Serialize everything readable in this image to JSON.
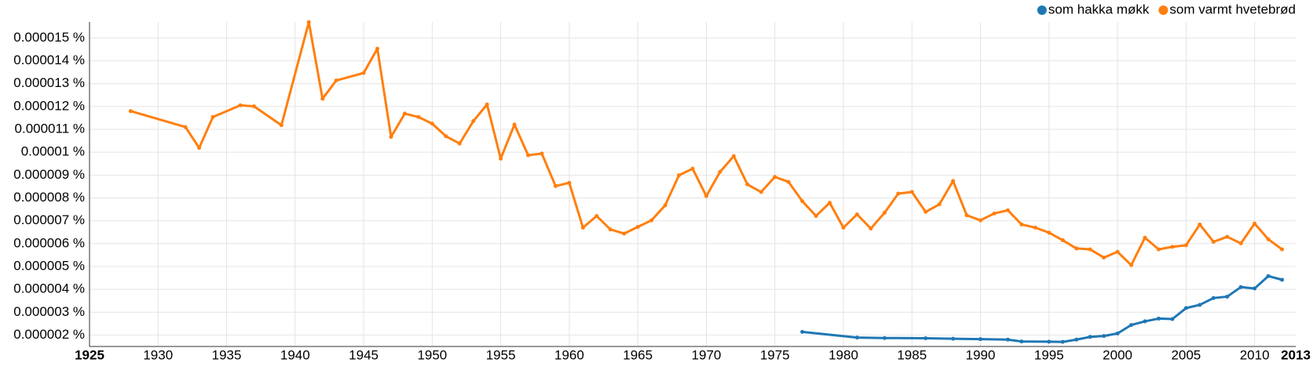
{
  "chart_data": {
    "type": "line",
    "series": [
      {
        "name": "som hakka møkk",
        "color": "#1f77b4",
        "x": [
          1977,
          1981,
          1983,
          1986,
          1988,
          1990,
          1992,
          1993,
          1995,
          1996,
          1997,
          1998,
          1999,
          2000,
          2001,
          2002,
          2003,
          2004,
          2005,
          2006,
          2007,
          2008,
          2009,
          2010,
          2011,
          2012
        ],
        "values": [
          2.14e-06,
          1.89e-06,
          1.87e-06,
          1.86e-06,
          1.84e-06,
          1.82e-06,
          1.8e-06,
          1.72e-06,
          1.71e-06,
          1.7e-06,
          1.8e-06,
          1.92e-06,
          1.96e-06,
          2.07e-06,
          2.44e-06,
          2.6e-06,
          2.72e-06,
          2.7e-06,
          3.18e-06,
          3.32e-06,
          3.62e-06,
          3.68e-06,
          4.1e-06,
          4.04e-06,
          4.58e-06,
          4.42e-06
        ]
      },
      {
        "name": "som varmt hvetebrød",
        "color": "#ff7f0e",
        "x": [
          1928,
          1932,
          1933,
          1934,
          1936,
          1937,
          1939,
          1941,
          1942,
          1943,
          1945,
          1946,
          1947,
          1948,
          1949,
          1950,
          1951,
          1952,
          1953,
          1954,
          1955,
          1956,
          1957,
          1958,
          1959,
          1960,
          1961,
          1962,
          1963,
          1964,
          1965,
          1966,
          1967,
          1968,
          1969,
          1970,
          1971,
          1972,
          1973,
          1974,
          1975,
          1976,
          1977,
          1978,
          1979,
          1980,
          1981,
          1982,
          1983,
          1984,
          1985,
          1986,
          1987,
          1988,
          1989,
          1990,
          1991,
          1992,
          1993,
          1994,
          1995,
          1996,
          1997,
          1998,
          1999,
          2000,
          2001,
          2002,
          2003,
          2004,
          2005,
          2006,
          2007,
          2008,
          2009,
          2010,
          2011,
          2012
        ],
        "values": [
          1.18e-05,
          1.11e-05,
          1.019e-05,
          1.154e-05,
          1.205e-05,
          1.201e-05,
          1.118e-05,
          1.569e-05,
          1.234e-05,
          1.314e-05,
          1.347e-05,
          1.453e-05,
          1.067e-05,
          1.169e-05,
          1.154e-05,
          1.125e-05,
          1.07e-05,
          1.038e-05,
          1.136e-05,
          1.209e-05,
          9.72e-06,
          1.121e-05,
          9.87e-06,
          9.94e-06,
          8.52e-06,
          8.66e-06,
          6.7e-06,
          7.21e-06,
          6.62e-06,
          6.44e-06,
          6.73e-06,
          7.02e-06,
          7.68e-06,
          8.99e-06,
          9.28e-06,
          8.08e-06,
          9.14e-06,
          9.83e-06,
          8.59e-06,
          8.26e-06,
          8.92e-06,
          8.7e-06,
          7.86e-06,
          7.21e-06,
          7.79e-06,
          6.7e-06,
          7.28e-06,
          6.66e-06,
          7.35e-06,
          8.19e-06,
          8.26e-06,
          7.39e-06,
          7.72e-06,
          8.74e-06,
          7.24e-06,
          7.02e-06,
          7.32e-06,
          7.46e-06,
          6.84e-06,
          6.7e-06,
          6.48e-06,
          6.15e-06,
          5.79e-06,
          5.75e-06,
          5.39e-06,
          5.64e-06,
          5.06e-06,
          6.26e-06,
          5.75e-06,
          5.86e-06,
          5.93e-06,
          6.84e-06,
          6.08e-06,
          6.3e-06,
          6.01e-06,
          6.88e-06,
          6.19e-06,
          5.75e-06
        ]
      }
    ],
    "xlim": [
      1925,
      2013
    ],
    "xticks": [
      1925,
      1930,
      1935,
      1940,
      1945,
      1950,
      1955,
      1960,
      1965,
      1970,
      1975,
      1980,
      1985,
      1990,
      1995,
      2000,
      2005,
      2010,
      2013
    ],
    "ylim": [
      1.5e-06,
      1.57e-05
    ],
    "yticks": [
      {
        "value": 2e-06,
        "label": "0.000002 %"
      },
      {
        "value": 3e-06,
        "label": "0.000003 %"
      },
      {
        "value": 4e-06,
        "label": "0.000004 %"
      },
      {
        "value": 5e-06,
        "label": "0.000005 %"
      },
      {
        "value": 6e-06,
        "label": "0.000006 %"
      },
      {
        "value": 7e-06,
        "label": "0.000007 %"
      },
      {
        "value": 8e-06,
        "label": "0.000008 %"
      },
      {
        "value": 9e-06,
        "label": "0.000009 %"
      },
      {
        "value": 1e-05,
        "label": "0.00001 %"
      },
      {
        "value": 1.1e-05,
        "label": "0.000011 %"
      },
      {
        "value": 1.2e-05,
        "label": "0.000012 %"
      },
      {
        "value": 1.3e-05,
        "label": "0.000013 %"
      },
      {
        "value": 1.4e-05,
        "label": "0.000014 %"
      },
      {
        "value": 1.5e-05,
        "label": "0.000015 %"
      }
    ],
    "grid": true,
    "legend": "top-right"
  }
}
